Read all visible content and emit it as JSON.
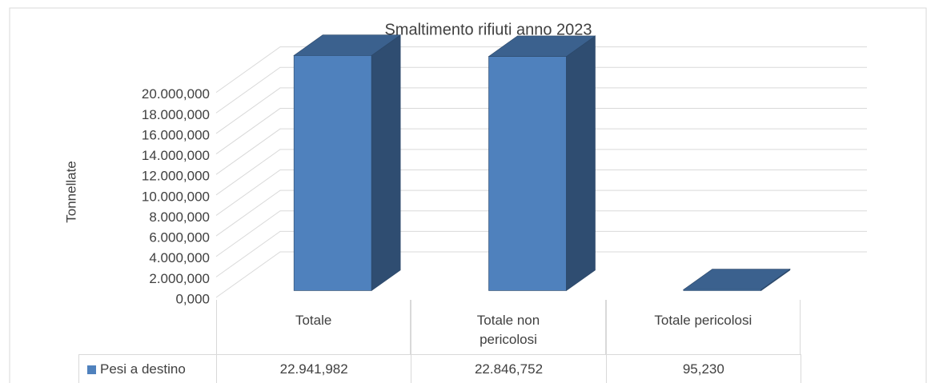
{
  "chart_data": {
    "type": "bar",
    "title": "Smaltimento rifiuti anno 2023",
    "y_label": "Tonnellate",
    "categories": [
      "Totale",
      "Totale non pericolosi",
      "Totale pericolosi"
    ],
    "series": [
      {
        "name": "Pesi a destino",
        "color": "#4f81bd",
        "values": [
          22941.982,
          22846.752,
          95.23
        ],
        "value_labels": [
          "22.941,982",
          "22.846,752",
          "95,230"
        ]
      }
    ],
    "ylim": [
      0,
      22000
    ],
    "yticks": [
      {
        "value": 0,
        "label": "0,000"
      },
      {
        "value": 2000,
        "label": "2.000,000"
      },
      {
        "value": 4000,
        "label": "4.000,000"
      },
      {
        "value": 6000,
        "label": "6.000,000"
      },
      {
        "value": 8000,
        "label": "8.000,000"
      },
      {
        "value": 10000,
        "label": "10.000,000"
      },
      {
        "value": 12000,
        "label": "12.000,000"
      },
      {
        "value": 14000,
        "label": "14.000,000"
      },
      {
        "value": 16000,
        "label": "16.000,000"
      },
      {
        "value": 18000,
        "label": "18.000,000"
      },
      {
        "value": 20000,
        "label": "20.000,000"
      }
    ],
    "grid": true,
    "legend": "bottom"
  }
}
